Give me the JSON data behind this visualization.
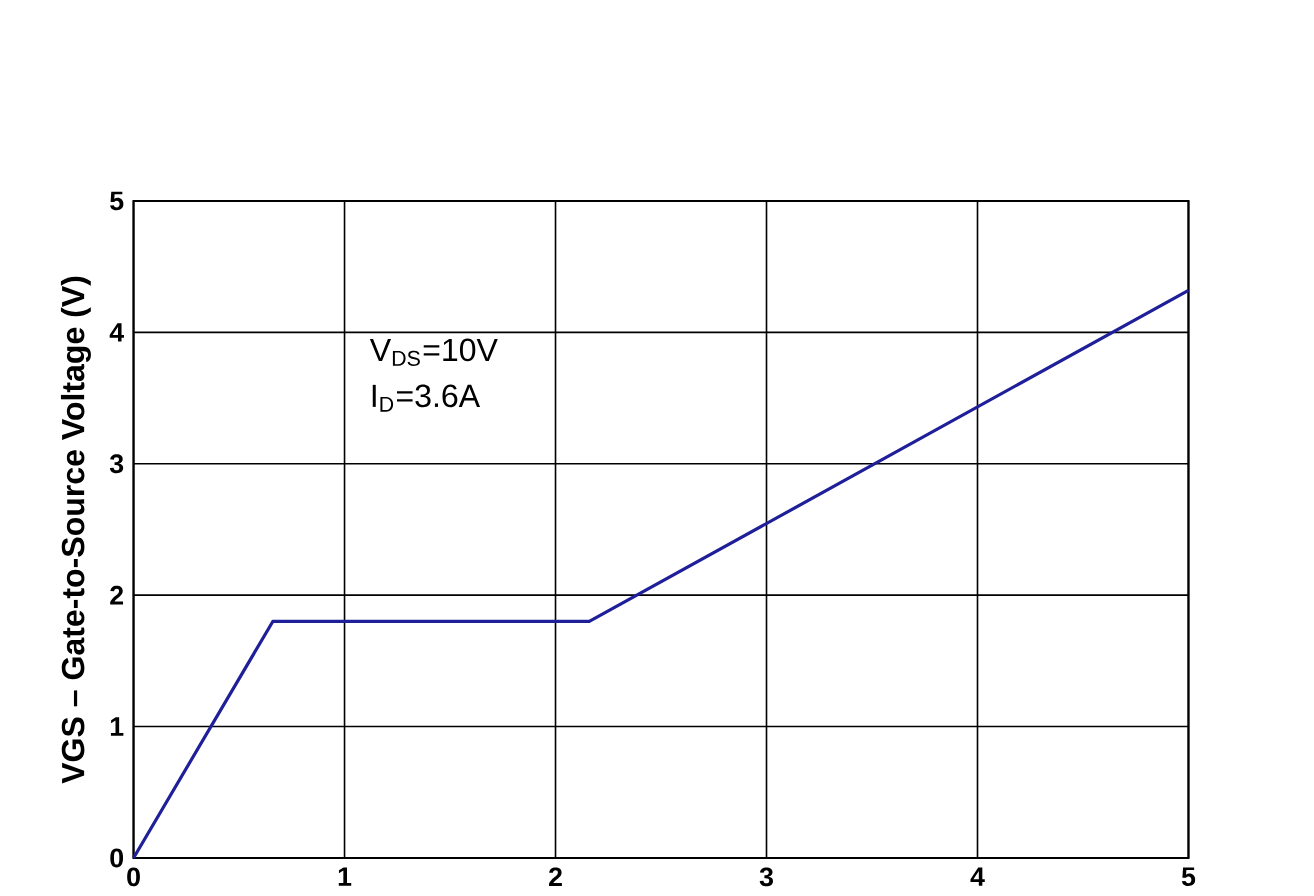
{
  "chart_data": {
    "type": "line",
    "ylabel": "VGS – Gate-to-Source Voltage (V)",
    "x": [
      0,
      0.66,
      2.16,
      5
    ],
    "series": [
      {
        "color": "#1f1f99",
        "values": [
          0,
          1.8,
          1.8,
          4.32
        ]
      }
    ],
    "xlim": [
      0,
      5
    ],
    "ylim": [
      0,
      5
    ],
    "xticks": [
      0,
      1,
      2,
      3,
      4,
      5
    ],
    "yticks": [
      0,
      1,
      2,
      3,
      4,
      5
    ],
    "grid": true,
    "marker": "none",
    "line_style": "solid",
    "annotations": [
      "V$_{DS}$=10V",
      "I$_{D}$=3.6A"
    ]
  }
}
